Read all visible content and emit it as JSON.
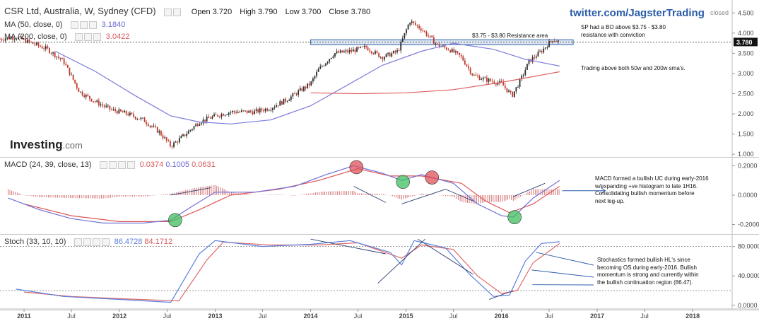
{
  "header": {
    "symbol": "CSR Ltd, Australia, W, Sydney (CFD)",
    "open_label": "Open",
    "open": "3.720",
    "high_label": "High",
    "high": "3.790",
    "low_label": "Low",
    "low": "3.700",
    "close_label": "Close",
    "close": "3.780",
    "ma50_label": "MA (50, close, 0)",
    "ma50_value": "3.1840",
    "ma200_label": "MA (200, close, 0)",
    "ma200_value": "3.0422",
    "macd_label": "MACD (24, 39, close, 13)",
    "macd_v1": "0.0374",
    "macd_v2": "0.1005",
    "macd_v3": "0.0631",
    "stoch_label": "Stoch (33, 10, 10)",
    "stoch_v1": "86.4728",
    "stoch_v2": "84.1712",
    "twitter": "twitter.com/JagsterTrading",
    "status": "closed",
    "logo": "Investing",
    "logo_suffix": ".com"
  },
  "notes": {
    "resistance": "$3.75 - $3.80 Resistance area",
    "bo": [
      "SP had a BO above $3.75 - $3.80",
      "resistance with conviction"
    ],
    "sma": "Trading above both 50w and 200w sma's.",
    "macd": [
      "MACD formed a bullish UC during early-2016",
      "w/expanding +ve histogram to late 1H16.",
      "Consolidating bullish momentum before",
      "next leg-up."
    ],
    "stoch": [
      "Stochastics formed bullish HL's since",
      "becoming OS during early-2016. Bullish",
      "momentum is strong and currently within",
      "the bullish continuation region (86.47)."
    ]
  },
  "colors": {
    "up": "#2b2b2b",
    "down": "#c0392b",
    "ma50": "#7b7bdc",
    "ma200": "#e06060",
    "macd": "#6f6fd8",
    "signal": "#e05656",
    "stoch_k": "#5a7fdc",
    "stoch_d": "#e06a6a",
    "annotation": "#2a5ca8",
    "green_marker": "#3fbf5f",
    "red_marker": "#e0505a"
  },
  "chart_data": {
    "type": "candlestick",
    "x_ticks": [
      "2011",
      "Jul",
      "2012",
      "Jul",
      "2013",
      "Jul",
      "2014",
      "Jul",
      "2015",
      "Jul",
      "2016",
      "Jul",
      "2017",
      "Jul",
      "2018"
    ],
    "price_axis": [
      "4.500",
      "4.000",
      "3.500",
      "3.000",
      "2.500",
      "2.000",
      "1.500",
      "1.000"
    ],
    "last_price": "3.780",
    "price_ylim": [
      0.95,
      4.75
    ],
    "price_series": [
      [
        "2010-10-01",
        3.85
      ],
      [
        "2010-12-01",
        3.9
      ],
      [
        "2011-02-01",
        3.75
      ],
      [
        "2011-04-01",
        3.6
      ],
      [
        "2011-06-01",
        3.3
      ],
      [
        "2011-08-01",
        2.55
      ],
      [
        "2011-10-01",
        2.3
      ],
      [
        "2011-12-01",
        2.1
      ],
      [
        "2012-02-01",
        2.0
      ],
      [
        "2012-04-01",
        1.85
      ],
      [
        "2012-06-01",
        1.55
      ],
      [
        "2012-07-15",
        1.2
      ],
      [
        "2012-09-01",
        1.45
      ],
      [
        "2012-11-01",
        1.8
      ],
      [
        "2013-01-01",
        1.95
      ],
      [
        "2013-03-01",
        2.05
      ],
      [
        "2013-06-01",
        2.05
      ],
      [
        "2013-08-01",
        2.15
      ],
      [
        "2013-10-01",
        2.35
      ],
      [
        "2014-01-01",
        2.75
      ],
      [
        "2014-02-01",
        3.1
      ],
      [
        "2014-04-01",
        3.5
      ],
      [
        "2014-06-01",
        3.55
      ],
      [
        "2014-08-01",
        3.65
      ],
      [
        "2014-10-01",
        3.4
      ],
      [
        "2014-12-01",
        3.55
      ],
      [
        "2015-01-15",
        4.3
      ],
      [
        "2015-03-01",
        4.1
      ],
      [
        "2015-05-01",
        3.7
      ],
      [
        "2015-06-15",
        3.6
      ],
      [
        "2015-08-01",
        3.4
      ],
      [
        "2015-09-15",
        2.95
      ],
      [
        "2015-11-01",
        2.85
      ],
      [
        "2016-01-01",
        2.75
      ],
      [
        "2016-02-10",
        2.45
      ],
      [
        "2016-03-15",
        2.85
      ],
      [
        "2016-04-15",
        3.3
      ],
      [
        "2016-06-01",
        3.55
      ],
      [
        "2016-07-15",
        3.85
      ],
      [
        "2016-08-10",
        3.78
      ]
    ],
    "ma50_series": [
      [
        "2011-05-01",
        3.55
      ],
      [
        "2011-10-01",
        3.05
      ],
      [
        "2012-03-01",
        2.45
      ],
      [
        "2012-07-15",
        1.95
      ],
      [
        "2012-11-01",
        1.8
      ],
      [
        "2013-03-01",
        1.75
      ],
      [
        "2013-08-01",
        1.85
      ],
      [
        "2014-01-01",
        2.2
      ],
      [
        "2014-06-01",
        2.75
      ],
      [
        "2014-10-01",
        3.2
      ],
      [
        "2015-03-01",
        3.55
      ],
      [
        "2015-07-01",
        3.75
      ],
      [
        "2015-12-01",
        3.6
      ],
      [
        "2016-04-01",
        3.35
      ],
      [
        "2016-08-10",
        3.184
      ]
    ],
    "ma200_series": [
      [
        "2014-01-01",
        2.52
      ],
      [
        "2014-07-01",
        2.5
      ],
      [
        "2015-01-01",
        2.52
      ],
      [
        "2015-07-01",
        2.6
      ],
      [
        "2016-01-01",
        2.78
      ],
      [
        "2016-08-10",
        3.042
      ]
    ],
    "resistance": [
      3.75,
      3.8
    ],
    "macd_axis": [
      "0.2000",
      "0.0000",
      "-0.2000"
    ],
    "macd_ylim": [
      -0.26,
      0.25
    ],
    "macd_series": [
      [
        "2010-11-01",
        -0.02
      ],
      [
        "2011-03-01",
        -0.1
      ],
      [
        "2011-07-01",
        -0.16
      ],
      [
        "2011-11-01",
        -0.19
      ],
      [
        "2012-04-01",
        -0.19
      ],
      [
        "2012-07-15",
        -0.17
      ],
      [
        "2012-10-01",
        -0.08
      ],
      [
        "2013-01-01",
        0.02
      ],
      [
        "2013-06-01",
        0.02
      ],
      [
        "2013-11-01",
        0.06
      ],
      [
        "2014-03-01",
        0.14
      ],
      [
        "2014-06-15",
        0.2
      ],
      [
        "2014-10-01",
        0.15
      ],
      [
        "2014-12-15",
        0.1
      ],
      [
        "2015-03-01",
        0.14
      ],
      [
        "2015-07-01",
        0.08
      ],
      [
        "2015-10-01",
        -0.06
      ],
      [
        "2016-01-01",
        -0.14
      ],
      [
        "2016-02-15",
        -0.15
      ],
      [
        "2016-05-01",
        -0.02
      ],
      [
        "2016-08-10",
        0.1
      ]
    ],
    "macd_signal_series": [
      [
        "2011-01-01",
        -0.06
      ],
      [
        "2011-07-01",
        -0.14
      ],
      [
        "2012-01-01",
        -0.18
      ],
      [
        "2012-07-15",
        -0.18
      ],
      [
        "2012-11-01",
        -0.1
      ],
      [
        "2013-03-01",
        0.0
      ],
      [
        "2013-09-01",
        0.04
      ],
      [
        "2014-02-01",
        0.1
      ],
      [
        "2014-07-01",
        0.18
      ],
      [
        "2014-11-01",
        0.13
      ],
      [
        "2015-03-01",
        0.13
      ],
      [
        "2015-08-01",
        0.08
      ],
      [
        "2015-11-01",
        -0.04
      ],
      [
        "2016-02-01",
        -0.12
      ],
      [
        "2016-05-01",
        -0.06
      ],
      [
        "2016-08-10",
        0.06
      ]
    ],
    "stoch_axis": [
      "80.0000",
      "40.0000",
      "0.0000"
    ],
    "stoch_levels": [
      80,
      20
    ],
    "stoch_ylim": [
      -5,
      95
    ],
    "stoch_k_series": [
      [
        "2010-12-01",
        22
      ],
      [
        "2011-06-01",
        12
      ],
      [
        "2012-01-01",
        8
      ],
      [
        "2012-07-15",
        4
      ],
      [
        "2012-11-01",
        70
      ],
      [
        "2013-01-01",
        88
      ],
      [
        "2013-07-01",
        80
      ],
      [
        "2014-01-01",
        83
      ],
      [
        "2014-06-01",
        88
      ],
      [
        "2014-11-01",
        72
      ],
      [
        "2014-12-15",
        55
      ],
      [
        "2015-02-01",
        88
      ],
      [
        "2015-06-01",
        78
      ],
      [
        "2015-09-01",
        42
      ],
      [
        "2015-12-01",
        12
      ],
      [
        "2016-02-01",
        14
      ],
      [
        "2016-04-01",
        60
      ],
      [
        "2016-06-01",
        84
      ],
      [
        "2016-08-10",
        86.47
      ]
    ],
    "stoch_d_series": [
      [
        "2011-01-01",
        18
      ],
      [
        "2011-07-01",
        12
      ],
      [
        "2012-01-01",
        9
      ],
      [
        "2012-08-15",
        6
      ],
      [
        "2012-12-01",
        62
      ],
      [
        "2013-02-01",
        86
      ],
      [
        "2013-08-01",
        82
      ],
      [
        "2014-02-01",
        82
      ],
      [
        "2014-07-01",
        85
      ],
      [
        "2014-12-15",
        64
      ],
      [
        "2015-03-01",
        82
      ],
      [
        "2015-07-01",
        76
      ],
      [
        "2015-10-01",
        40
      ],
      [
        "2016-01-01",
        16
      ],
      [
        "2016-03-01",
        20
      ],
      [
        "2016-05-01",
        58
      ],
      [
        "2016-08-10",
        84.17
      ]
    ]
  }
}
